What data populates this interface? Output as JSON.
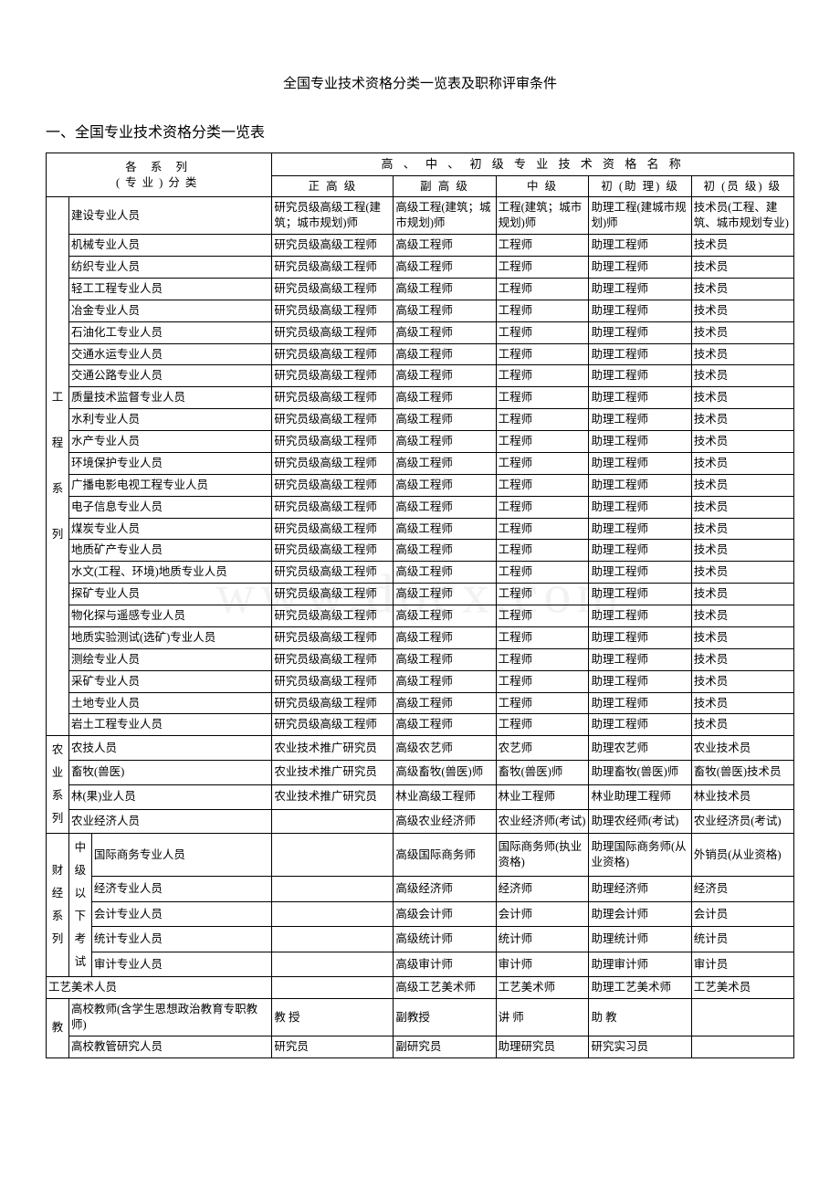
{
  "doc": {
    "title": "全国专业技术资格分类一览表及职称评审条件",
    "section1": "一、全国专业技术资格分类一览表",
    "watermark": "www.docx.com"
  },
  "headers": {
    "series": "各 系 列\n(专业)分类",
    "top": "高 、 中 、 初 级 专 业 技 术 资 格 名 称",
    "c1": "正 高 级",
    "c2": "副 高 级",
    "c3": "中   级",
    "c4": "初 (助 理) 级",
    "c5": "初 (员 级) 级"
  },
  "groups": [
    {
      "label": "工\n\n程\n\n系\n\n列",
      "rows": [
        {
          "name": "建设专业人员",
          "c1": "研究员级高级工程(建筑；城市规划)师",
          "c2": "高级工程(建筑；城市规划)师",
          "c3": "工程(建筑；城市规划)师",
          "c4": "助理工程(建城市规划)师",
          "c5": "技术员(工程、建筑、城市规划专业)"
        },
        {
          "name": "机械专业人员",
          "c1": "研究员级高级工程师",
          "c2": "高级工程师",
          "c3": "工程师",
          "c4": "助理工程师",
          "c5": "技术员"
        },
        {
          "name": "纺织专业人员",
          "c1": "研究员级高级工程师",
          "c2": "高级工程师",
          "c3": "工程师",
          "c4": "助理工程师",
          "c5": "技术员"
        },
        {
          "name": "轻工工程专业人员",
          "c1": "研究员级高级工程师",
          "c2": "高级工程师",
          "c3": "工程师",
          "c4": "助理工程师",
          "c5": "技术员"
        },
        {
          "name": "冶金专业人员",
          "c1": "研究员级高级工程师",
          "c2": "高级工程师",
          "c3": "工程师",
          "c4": "助理工程师",
          "c5": "技术员"
        },
        {
          "name": "石油化工专业人员",
          "c1": "研究员级高级工程师",
          "c2": "高级工程师",
          "c3": "工程师",
          "c4": "助理工程师",
          "c5": "技术员"
        },
        {
          "name": "交通水运专业人员",
          "c1": "研究员级高级工程师",
          "c2": "高级工程师",
          "c3": "工程师",
          "c4": "助理工程师",
          "c5": "技术员"
        },
        {
          "name": "交通公路专业人员",
          "c1": "研究员级高级工程师",
          "c2": "高级工程师",
          "c3": "工程师",
          "c4": "助理工程师",
          "c5": "技术员"
        },
        {
          "name": "质量技术监督专业人员",
          "c1": "研究员级高级工程师",
          "c2": "高级工程师",
          "c3": "工程师",
          "c4": "助理工程师",
          "c5": "技术员"
        },
        {
          "name": "水利专业人员",
          "c1": "研究员级高级工程师",
          "c2": "高级工程师",
          "c3": "工程师",
          "c4": "助理工程师",
          "c5": "技术员"
        },
        {
          "name": "水产专业人员",
          "c1": "研究员级高级工程师",
          "c2": "高级工程师",
          "c3": "工程师",
          "c4": "助理工程师",
          "c5": "技术员"
        },
        {
          "name": "环境保护专业人员",
          "c1": "研究员级高级工程师",
          "c2": "高级工程师",
          "c3": "工程师",
          "c4": "助理工程师",
          "c5": "技术员"
        },
        {
          "name": "广播电影电视工程专业人员",
          "c1": "研究员级高级工程师",
          "c2": "高级工程师",
          "c3": "工程师",
          "c4": "助理工程师",
          "c5": "技术员"
        },
        {
          "name": "电子信息专业人员",
          "c1": "研究员级高级工程师",
          "c2": "高级工程师",
          "c3": "工程师",
          "c4": "助理工程师",
          "c5": "技术员"
        },
        {
          "name": "煤炭专业人员",
          "c1": "研究员级高级工程师",
          "c2": "高级工程师",
          "c3": "工程师",
          "c4": "助理工程师",
          "c5": "技术员"
        },
        {
          "name": "地质矿产专业人员",
          "c1": "研究员级高级工程师",
          "c2": "高级工程师",
          "c3": "工程师",
          "c4": "助理工程师",
          "c5": "技术员"
        },
        {
          "name": "水文(工程、环境)地质专业人员",
          "c1": "研究员级高级工程师",
          "c2": "高级工程师",
          "c3": "工程师",
          "c4": "助理工程师",
          "c5": "技术员"
        },
        {
          "name": "探矿专业人员",
          "c1": "研究员级高级工程师",
          "c2": "高级工程师",
          "c3": "工程师",
          "c4": "助理工程师",
          "c5": "技术员"
        },
        {
          "name": "物化探与遥感专业人员",
          "c1": "研究员级高级工程师",
          "c2": "高级工程师",
          "c3": "工程师",
          "c4": "助理工程师",
          "c5": "技术员"
        },
        {
          "name": "地质实验测试(选矿)专业人员",
          "c1": "研究员级高级工程师",
          "c2": "高级工程师",
          "c3": "工程师",
          "c4": "助理工程师",
          "c5": "技术员"
        },
        {
          "name": "测绘专业人员",
          "c1": "研究员级高级工程师",
          "c2": "高级工程师",
          "c3": "工程师",
          "c4": "助理工程师",
          "c5": "技术员"
        },
        {
          "name": "采矿专业人员",
          "c1": "研究员级高级工程师",
          "c2": "高级工程师",
          "c3": "工程师",
          "c4": "助理工程师",
          "c5": "技术员"
        },
        {
          "name": "土地专业人员",
          "c1": "研究员级高级工程师",
          "c2": "高级工程师",
          "c3": "工程师",
          "c4": "助理工程师",
          "c5": "技术员"
        },
        {
          "name": "岩土工程专业人员",
          "c1": "研究员级高级工程师",
          "c2": "高级工程师",
          "c3": "工程师",
          "c4": "助理工程师",
          "c5": "技术员"
        }
      ]
    },
    {
      "label": "农\n业\n系\n列",
      "rows": [
        {
          "name": "农技人员",
          "c1": "农业技术推广研究员",
          "c2": "高级农艺师",
          "c3": "农艺师",
          "c4": "助理农艺师",
          "c5": "农业技术员"
        },
        {
          "name": "畜牧(兽医)",
          "c1": "农业技术推广研究员",
          "c2": "高级畜牧(兽医)师",
          "c3": "畜牧(兽医)师",
          "c4": "助理畜牧(兽医)师",
          "c5": "畜牧(兽医)技术员"
        },
        {
          "name": "林(果)业人员",
          "c1": "农业技术推广研究员",
          "c2": "林业高级工程师",
          "c3": "林业工程师",
          "c4": "林业助理工程师",
          "c5": "林业技术员"
        },
        {
          "name": "农业经济人员",
          "c1": "",
          "c2": "高级农业经济师",
          "c3": "农业经济师(考试)",
          "c4": "助理农经师(考试)",
          "c5": "农业经济员(考试)"
        }
      ]
    }
  ],
  "finance": {
    "groupLabel": "财\n经\n系\n列",
    "subLabel": "中\n级\n以\n下\n考\n试",
    "rows": [
      {
        "name": "国际商务专业人员",
        "c1": "",
        "c2": "高级国际商务师",
        "c3": "国际商务师(执业资格)",
        "c4": "助理国际商务师(从业资格)",
        "c5": "外销员(从业资格)"
      },
      {
        "name": "经济专业人员",
        "c1": "",
        "c2": "高级经济师",
        "c3": "经济师",
        "c4": "助理经济师",
        "c5": "经济员"
      },
      {
        "name": "会计专业人员",
        "c1": "",
        "c2": "高级会计师",
        "c3": "会计师",
        "c4": "助理会计师",
        "c5": "会计员"
      },
      {
        "name": "统计专业人员",
        "c1": "",
        "c2": "高级统计师",
        "c3": "统计师",
        "c4": "助理统计师",
        "c5": "统计员"
      },
      {
        "name": "审计专业人员",
        "c1": "",
        "c2": "高级审计师",
        "c3": "审计师",
        "c4": "助理审计师",
        "c5": "审计员"
      }
    ]
  },
  "craft": {
    "name": "工艺美术人员",
    "c1": "",
    "c2": "高级工艺美术师",
    "c3": "工艺美术师",
    "c4": "助理工艺美术师",
    "c5": "工艺美术员"
  },
  "edu": {
    "label": "教",
    "rows": [
      {
        "name": "高校教师(含学生思想政治教育专职教师)",
        "c1": "教 授",
        "c2": "副教授",
        "c3": "讲 师",
        "c4": "助 教",
        "c5": ""
      },
      {
        "name": "高校教管研究人员",
        "c1": "研究员",
        "c2": "副研究员",
        "c3": "助理研究员",
        "c4": "研究实习员",
        "c5": ""
      }
    ]
  },
  "style": {
    "border_color": "#000000",
    "background": "#ffffff",
    "font_family": "SimSun",
    "title_fontsize": 15,
    "heading_fontsize": 16,
    "cell_fontsize": 12.5
  }
}
